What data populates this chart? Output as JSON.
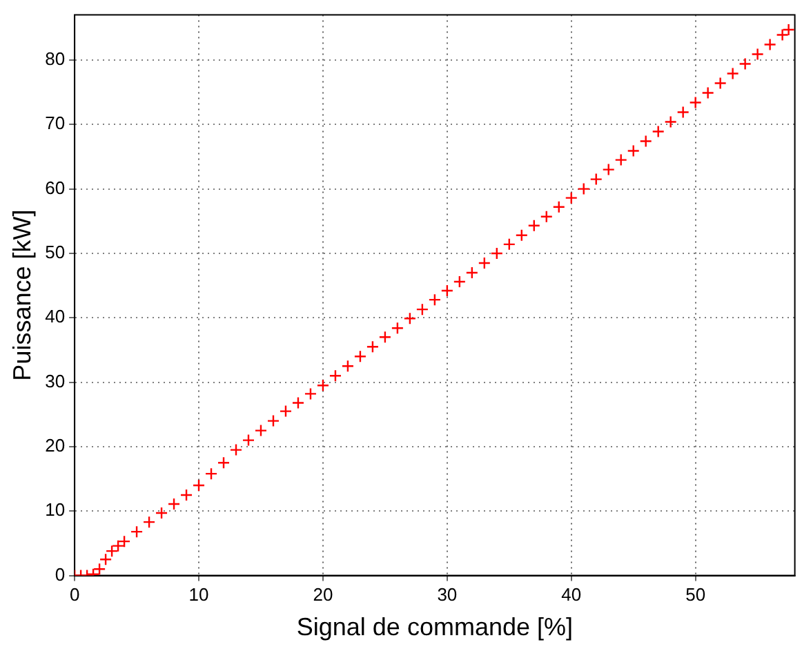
{
  "chart_data": {
    "type": "scatter",
    "xlabel": "Signal de commande [%]",
    "ylabel": "Puissance [kW]",
    "xlim": [
      0,
      58
    ],
    "ylim": [
      0,
      87
    ],
    "xticks": [
      0,
      10,
      20,
      30,
      40,
      50
    ],
    "yticks": [
      0,
      10,
      20,
      30,
      40,
      50,
      60,
      70,
      80
    ],
    "grid": true,
    "marker": "cross",
    "legend": false,
    "series": [
      {
        "color": "#ff0000",
        "x": [
          0,
          0.5,
          1,
          1.5,
          2,
          2.5,
          3,
          3.5,
          4,
          5,
          6,
          7,
          8,
          9,
          10,
          11,
          12,
          13,
          14,
          15,
          16,
          17,
          18,
          19,
          20,
          21,
          22,
          23,
          24,
          25,
          26,
          27,
          28,
          29,
          30,
          31,
          32,
          33,
          34,
          35,
          36,
          37,
          38,
          39,
          40,
          41,
          42,
          43,
          44,
          45,
          46,
          47,
          48,
          49,
          50,
          51,
          52,
          53,
          54,
          55,
          56,
          57,
          57.5
        ],
        "values": [
          0,
          0,
          0,
          0.2,
          1,
          2.5,
          3.8,
          4.6,
          5.3,
          6.8,
          8.3,
          9.7,
          11.1,
          12.5,
          14,
          15.8,
          17.5,
          19.5,
          21,
          22.5,
          24,
          25.5,
          26.8,
          28.2,
          29.5,
          31,
          32.5,
          34,
          35.5,
          37,
          38.4,
          39.9,
          41.3,
          42.8,
          44.2,
          45.6,
          47,
          48.5,
          50,
          51.4,
          52.8,
          54.3,
          55.7,
          57.2,
          58.6,
          60,
          61.5,
          63,
          64.5,
          65.9,
          67.4,
          68.9,
          70.4,
          71.9,
          73.4,
          74.9,
          76.4,
          77.9,
          79.4,
          80.9,
          82.4,
          83.9,
          84.7
        ]
      }
    ]
  }
}
